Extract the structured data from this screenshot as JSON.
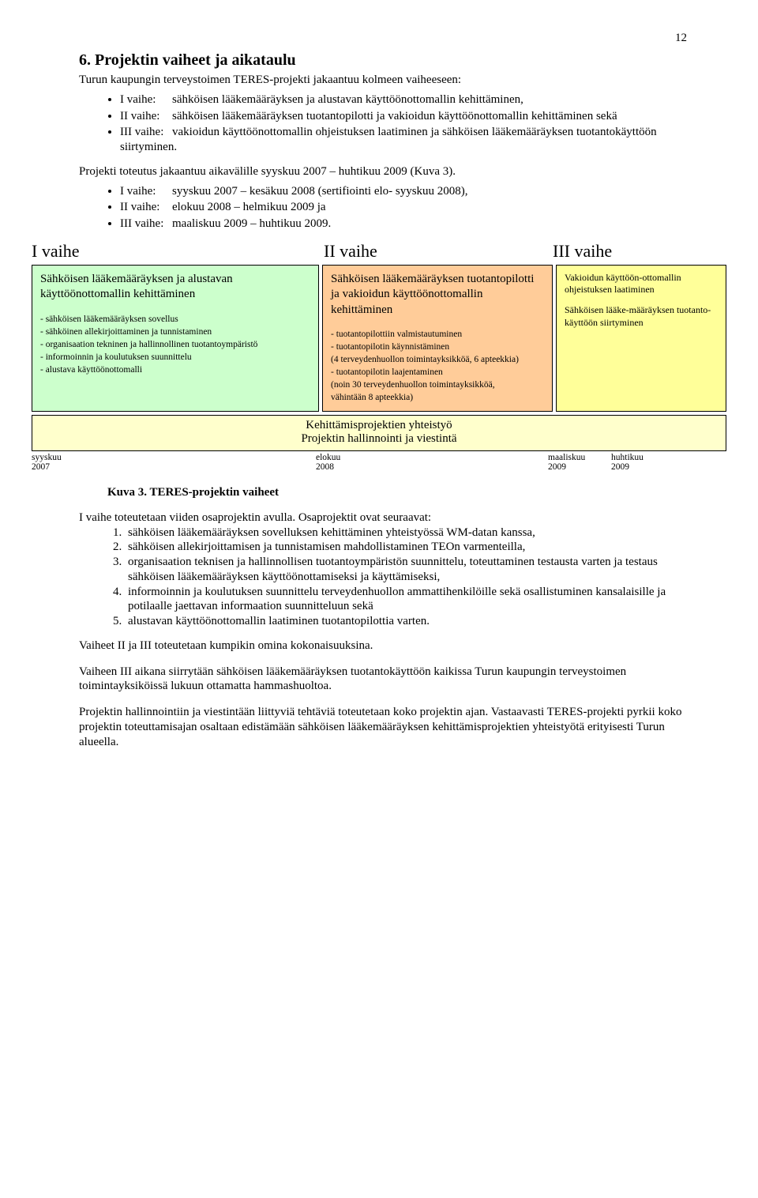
{
  "page_number": "12",
  "heading": "6. Projektin vaiheet ja aikataulu",
  "intro1": "Turun kaupungin terveystoimen TERES-projekti jakaantuu kolmeen vaiheeseen:",
  "bullets1": [
    {
      "label": "I vaihe:",
      "text": "sähköisen lääkemääräyksen ja alustavan käyttöönottomallin kehittäminen,"
    },
    {
      "label": "II vaihe:",
      "text": "sähköisen lääkemääräyksen tuotantopilotti ja vakioidun käyttöönottomallin kehittäminen sekä"
    },
    {
      "label": "III vaihe:",
      "text": "vakioidun käyttöönottomallin ohjeistuksen laatiminen ja sähköisen lääkemääräyksen tuotantokäyttöön siirtyminen."
    }
  ],
  "intro2": "Projekti toteutus jakaantuu aikavälille syyskuu 2007 – huhtikuu 2009 (Kuva 3).",
  "bullets2": [
    {
      "label": "I vaihe:",
      "text": "syyskuu 2007 – kesäkuu 2008 (sertifiointi elo- syyskuu 2008),"
    },
    {
      "label": "II vaihe:",
      "text": "elokuu 2008 – helmikuu 2009 ja"
    },
    {
      "label": "III vaihe:",
      "text": "maaliskuu 2009 – huhtikuu 2009."
    }
  ],
  "phaseheads": {
    "a": "I vaihe",
    "b": "II vaihe",
    "c": "III vaihe"
  },
  "diagram": {
    "colors": {
      "box_a": "#ccffcc",
      "box_b": "#ffcc99",
      "box_c": "#ffff99",
      "bar": "#ffffcc",
      "border": "#000000"
    },
    "box_a": {
      "lead": "Sähköisen lääkemääräyksen ja alustavan käyttöönottomallin kehittäminen",
      "items": [
        "- sähköisen lääkemääräyksen sovellus",
        "- sähköinen allekirjoittaminen ja tunnistaminen",
        "- organisaation tekninen ja hallinnollinen tuotantoympäristö",
        "- informoinnin ja koulutuksen suunnittelu",
        "- alustava käyttöönottomalli"
      ]
    },
    "box_b": {
      "lead": "Sähköisen lääkemääräyksen tuotantopilotti ja vakioidun käyttöönottomallin kehittäminen",
      "items": [
        "- tuotantopilottiin valmistautuminen",
        "- tuotantopilotin käynnistäminen",
        "  (4 terveydenhuollon toimintayksikköä, 6 apteekkia)",
        "- tuotantopilotin laajentaminen",
        "  (noin 30 terveydenhuollon toimintayksikköä,",
        "   vähintään 8 apteekkia)"
      ]
    },
    "box_c": {
      "chunk1": "Vakioidun käyttöön-ottomallin ohjeistuksen laatiminen",
      "chunk2": "Sähköisen lääke-määräyksen tuotanto-käyttöön siirtyminen"
    },
    "bar_line1": "Kehittämisprojektien yhteistyö",
    "bar_line2": "Projektin hallinnointi ja viestintä",
    "timeline": {
      "a1": "syyskuu",
      "a2": "2007",
      "b1": "elokuu",
      "b2": "2008",
      "c1": "maaliskuu",
      "c2": "2009",
      "d1": "huhtikuu",
      "d2": "2009"
    }
  },
  "caption": "Kuva 3. TERES-projektin vaiheet",
  "after_intro": "I vaihe toteutetaan viiden osaprojektin avulla. Osaprojektit ovat seuraavat:",
  "numbered": [
    "sähköisen lääkemääräyksen sovelluksen kehittäminen yhteistyössä WM-datan kanssa,",
    "sähköisen allekirjoittamisen ja tunnistamisen mahdollistaminen TEOn varmenteilla,",
    "organisaation teknisen ja hallinnollisen tuotantoympäristön suunnittelu, toteuttaminen testausta varten ja testaus sähköisen lääkemääräyksen käyttöönottamiseksi ja käyttämiseksi,",
    "informoinnin ja koulutuksen suunnittelu terveydenhuollon ammattihenkilöille sekä osallistuminen kansalaisille ja potilaalle jaettavan informaation suunnitteluun sekä",
    "alustavan käyttöönottomallin laatiminen tuotantopilottia varten."
  ],
  "para1": "Vaiheet II ja III toteutetaan kumpikin omina kokonaisuuksina.",
  "para2": "Vaiheen III aikana siirrytään sähköisen lääkemääräyksen tuotantokäyttöön kaikissa Turun kaupungin terveystoimen toimintayksiköissä lukuun ottamatta hammashuoltoa.",
  "para3": "Projektin hallinnointiin ja viestintään liittyviä tehtäviä toteutetaan koko projektin ajan. Vastaavasti TERES-projekti pyrkii koko projektin toteuttamisajan osaltaan edistämään sähköisen lääkemääräyksen kehittämisprojektien yhteistyötä erityisesti Turun alueella."
}
